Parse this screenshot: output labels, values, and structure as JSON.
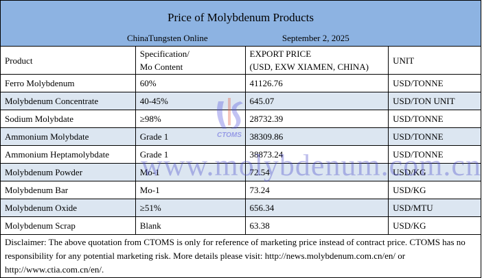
{
  "title": "Price of Molybdenum Products",
  "source": "ChinaTungsten Online",
  "date": "September 2, 2025",
  "headers": {
    "product": "Product",
    "spec1": "Specification/",
    "spec2": "Mo Content",
    "price1": "EXPORT PRICE",
    "price2": "(USD, EXW XIAMEN, CHINA)",
    "unit": "UNIT"
  },
  "rows": [
    {
      "product": "Ferro Molybdenum",
      "spec": "60%",
      "price": "41126.76",
      "unit": "USD/TONNE"
    },
    {
      "product": "Molybdenum Concentrate",
      "spec": "40-45%",
      "price": "645.07",
      "unit": "USD/TON UNIT"
    },
    {
      "product": "Sodium Molybdate",
      "spec": "≥98%",
      "price": "28732.39",
      "unit": "USD/TONNE"
    },
    {
      "product": "Ammonium Molybdate",
      "spec": "Grade 1",
      "price": "38309.86",
      "unit": "USD/TONNE"
    },
    {
      "product": "Ammonium Heptamolybdate",
      "spec": "Grade 1",
      "price": "38873.24",
      "unit": "USD/TONNE"
    },
    {
      "product": "Molybdenum Powder",
      "spec": "Mo-1",
      "price": "72.54",
      "unit": "USD/KG"
    },
    {
      "product": "Molybdenum Bar",
      "spec": "Mo-1",
      "price": "73.24",
      "unit": "USD/KG"
    },
    {
      "product": "Molybdenum Oxide",
      "spec": "≥51%",
      "price": "656.34",
      "unit": "USD/MTU"
    },
    {
      "product": "Molybdenum Scrap",
      "spec": "Blank",
      "price": "63.38",
      "unit": "USD/KG"
    }
  ],
  "disclaimer": "Disclaimer: The above quotation from CTOMS is only for reference of marketing price instead of contract price. CTOMS has no responsibility for any potential marketing risk. More details please visit: http://news.molybdenum.com.cn/en/ or http://www.ctia.com.cn/en/.",
  "watermark": "www.molybdenum.com.cn",
  "logo_text": "CTOMS",
  "colors": {
    "header_bg": "#8db3e2",
    "alt_row": "#dce6f1"
  }
}
